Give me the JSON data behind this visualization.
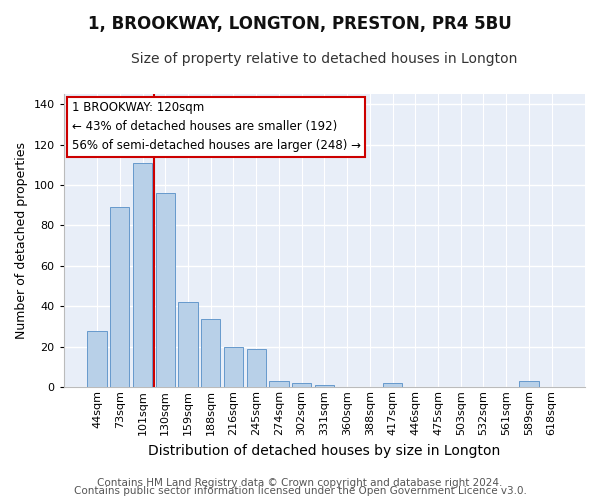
{
  "title1": "1, BROOKWAY, LONGTON, PRESTON, PR4 5BU",
  "title2": "Size of property relative to detached houses in Longton",
  "xlabel": "Distribution of detached houses by size in Longton",
  "ylabel": "Number of detached properties",
  "categories": [
    "44sqm",
    "73sqm",
    "101sqm",
    "130sqm",
    "159sqm",
    "188sqm",
    "216sqm",
    "245sqm",
    "274sqm",
    "302sqm",
    "331sqm",
    "360sqm",
    "388sqm",
    "417sqm",
    "446sqm",
    "475sqm",
    "503sqm",
    "532sqm",
    "561sqm",
    "589sqm",
    "618sqm"
  ],
  "values": [
    28,
    89,
    111,
    96,
    42,
    34,
    20,
    19,
    3,
    2,
    1,
    0,
    0,
    2,
    0,
    0,
    0,
    0,
    0,
    3,
    0
  ],
  "bar_color": "#b8d0e8",
  "bar_edge_color": "#6699cc",
  "vline_color": "#cc0000",
  "vline_index": 2.5,
  "annotation_line1": "1 BROOKWAY: 120sqm",
  "annotation_line2": "← 43% of detached houses are smaller (192)",
  "annotation_line3": "56% of semi-detached houses are larger (248) →",
  "annotation_box_facecolor": "#ffffff",
  "annotation_box_edgecolor": "#cc0000",
  "ylim": [
    0,
    145
  ],
  "yticks": [
    0,
    20,
    40,
    60,
    80,
    100,
    120,
    140
  ],
  "ax_background": "#e8eef8",
  "fig_background": "#ffffff",
  "grid_color": "#ffffff",
  "title1_fontsize": 12,
  "title2_fontsize": 10,
  "xlabel_fontsize": 10,
  "ylabel_fontsize": 9,
  "tick_fontsize": 8,
  "annot_fontsize": 8.5,
  "footer_fontsize": 7.5,
  "footer1": "Contains HM Land Registry data © Crown copyright and database right 2024.",
  "footer2": "Contains public sector information licensed under the Open Government Licence v3.0."
}
